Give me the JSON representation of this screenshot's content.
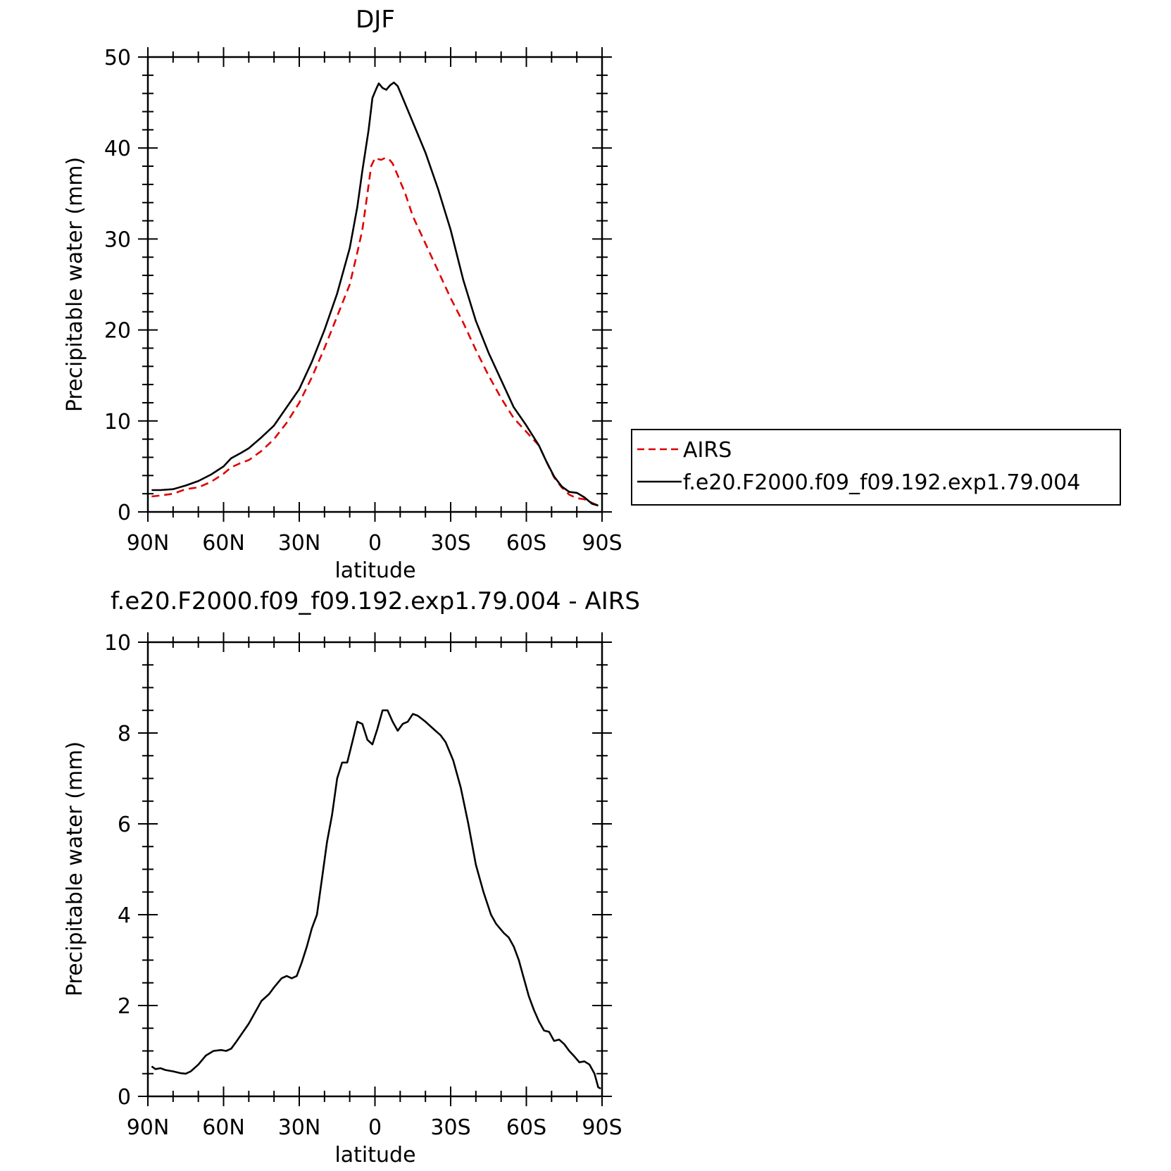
{
  "charts_meta": {
    "count": 2
  },
  "chart_data": [
    {
      "type": "line",
      "title": "DJF",
      "xlabel": "latitude",
      "ylabel": "Precipitable water (mm)",
      "xlim": [
        90,
        -90
      ],
      "ylim": [
        0,
        50
      ],
      "x_ticks": [
        90,
        60,
        30,
        0,
        -30,
        -60,
        -90
      ],
      "x_tick_labels": [
        "90N",
        "60N",
        "30N",
        "0",
        "30S",
        "60S",
        "90S"
      ],
      "y_ticks": [
        0,
        10,
        20,
        30,
        40,
        50
      ],
      "y_tick_labels": [
        "0",
        "10",
        "20",
        "30",
        "40",
        "50"
      ],
      "grid": false,
      "legend_position": "right",
      "series": [
        {
          "name": "AIRS",
          "color": "#e00000",
          "dash": "dashed",
          "points": [
            [
              88.5,
              1.7
            ],
            [
              85,
              1.8
            ],
            [
              80,
              2.0
            ],
            [
              75,
              2.5
            ],
            [
              70,
              2.7
            ],
            [
              65,
              3.3
            ],
            [
              60,
              4.2
            ],
            [
              57,
              4.9
            ],
            [
              53,
              5.4
            ],
            [
              50,
              5.7
            ],
            [
              45,
              6.7
            ],
            [
              40,
              8.0
            ],
            [
              35,
              9.8
            ],
            [
              30,
              12.0
            ],
            [
              25,
              14.8
            ],
            [
              20,
              18.0
            ],
            [
              15,
              21.5
            ],
            [
              10,
              25.0
            ],
            [
              7,
              28.5
            ],
            [
              5,
              31.0
            ],
            [
              3,
              35.0
            ],
            [
              1.5,
              38.0
            ],
            [
              0,
              38.9
            ],
            [
              -1,
              38.8
            ],
            [
              -2.5,
              38.7
            ],
            [
              -4,
              38.9
            ],
            [
              -5.5,
              38.8
            ],
            [
              -7,
              38.3
            ],
            [
              -9,
              37.0
            ],
            [
              -12,
              35.0
            ],
            [
              -15,
              32.5
            ],
            [
              -20,
              29.5
            ],
            [
              -25,
              26.5
            ],
            [
              -30,
              23.5
            ],
            [
              -35,
              20.8
            ],
            [
              -40,
              17.8
            ],
            [
              -45,
              15.0
            ],
            [
              -50,
              12.5
            ],
            [
              -55,
              10.3
            ],
            [
              -60,
              8.8
            ],
            [
              -65,
              7.3
            ],
            [
              -68,
              5.5
            ],
            [
              -71,
              3.8
            ],
            [
              -74,
              2.7
            ],
            [
              -77,
              1.9
            ],
            [
              -80,
              1.5
            ],
            [
              -83,
              1.4
            ],
            [
              -86,
              1.0
            ],
            [
              -88.5,
              0.7
            ]
          ]
        },
        {
          "name": "f.e20.F2000.f09_f09.192.exp1.79.004",
          "color": "#000000",
          "dash": "solid",
          "points": [
            [
              88.5,
              2.4
            ],
            [
              85,
              2.4
            ],
            [
              80,
              2.5
            ],
            [
              75,
              2.9
            ],
            [
              70,
              3.4
            ],
            [
              65,
              4.1
            ],
            [
              60,
              5.0
            ],
            [
              57,
              5.9
            ],
            [
              53,
              6.5
            ],
            [
              50,
              7.0
            ],
            [
              45,
              8.2
            ],
            [
              40,
              9.5
            ],
            [
              35,
              11.5
            ],
            [
              30,
              13.5
            ],
            [
              25,
              16.5
            ],
            [
              20,
              20.0
            ],
            [
              15,
              24.0
            ],
            [
              10,
              29.0
            ],
            [
              7,
              33.5
            ],
            [
              5,
              37.5
            ],
            [
              2.5,
              42.0
            ],
            [
              1,
              45.5
            ],
            [
              -0.5,
              46.5
            ],
            [
              -1.5,
              47.1
            ],
            [
              -3,
              46.6
            ],
            [
              -4.5,
              46.4
            ],
            [
              -6,
              46.9
            ],
            [
              -7.5,
              47.2
            ],
            [
              -9,
              46.8
            ],
            [
              -11,
              45.5
            ],
            [
              -14,
              43.5
            ],
            [
              -17,
              41.5
            ],
            [
              -20,
              39.5
            ],
            [
              -25,
              35.5
            ],
            [
              -30,
              31.0
            ],
            [
              -35,
              25.5
            ],
            [
              -40,
              21.0
            ],
            [
              -45,
              17.5
            ],
            [
              -50,
              14.5
            ],
            [
              -55,
              11.5
            ],
            [
              -60,
              9.5
            ],
            [
              -65,
              7.3
            ],
            [
              -68,
              5.5
            ],
            [
              -71,
              3.9
            ],
            [
              -74,
              2.8
            ],
            [
              -77,
              2.2
            ],
            [
              -80,
              2.1
            ],
            [
              -83,
              1.6
            ],
            [
              -86,
              0.9
            ],
            [
              -88.5,
              0.7
            ]
          ]
        }
      ]
    },
    {
      "type": "line",
      "title": "f.e20.F2000.f09_f09.192.exp1.79.004 - AIRS",
      "xlabel": "latitude",
      "ylabel": "Precipitable water (mm)",
      "xlim": [
        90,
        -90
      ],
      "ylim": [
        0,
        10
      ],
      "x_ticks": [
        90,
        60,
        30,
        0,
        -30,
        -60,
        -90
      ],
      "x_tick_labels": [
        "90N",
        "60N",
        "30N",
        "0",
        "30S",
        "60S",
        "90S"
      ],
      "y_ticks": [
        0,
        2,
        4,
        6,
        8,
        10
      ],
      "y_tick_labels": [
        "0",
        "2",
        "4",
        "6",
        "8",
        "10"
      ],
      "grid": false,
      "series": [
        {
          "color": "#000000",
          "dash": "solid",
          "points": [
            [
              88.5,
              0.66
            ],
            [
              87,
              0.6
            ],
            [
              85,
              0.62
            ],
            [
              83,
              0.58
            ],
            [
              80,
              0.55
            ],
            [
              77,
              0.51
            ],
            [
              75,
              0.5
            ],
            [
              73,
              0.55
            ],
            [
              70,
              0.7
            ],
            [
              67,
              0.9
            ],
            [
              64,
              1.0
            ],
            [
              61,
              1.02
            ],
            [
              59,
              1.0
            ],
            [
              57,
              1.05
            ],
            [
              55,
              1.2
            ],
            [
              50,
              1.6
            ],
            [
              45,
              2.1
            ],
            [
              42,
              2.25
            ],
            [
              40,
              2.4
            ],
            [
              37,
              2.6
            ],
            [
              35,
              2.65
            ],
            [
              33,
              2.6
            ],
            [
              31,
              2.65
            ],
            [
              29,
              2.95
            ],
            [
              27,
              3.3
            ],
            [
              25,
              3.7
            ],
            [
              23,
              4.0
            ],
            [
              21,
              4.8
            ],
            [
              19,
              5.6
            ],
            [
              17,
              6.2
            ],
            [
              15,
              7.0
            ],
            [
              13,
              7.35
            ],
            [
              11,
              7.35
            ],
            [
              9,
              7.8
            ],
            [
              7,
              8.25
            ],
            [
              5,
              8.2
            ],
            [
              3,
              7.85
            ],
            [
              1,
              7.75
            ],
            [
              -1,
              8.1
            ],
            [
              -3,
              8.5
            ],
            [
              -5,
              8.5
            ],
            [
              -7,
              8.25
            ],
            [
              -9,
              8.05
            ],
            [
              -11,
              8.2
            ],
            [
              -13,
              8.25
            ],
            [
              -15,
              8.42
            ],
            [
              -17,
              8.38
            ],
            [
              -20,
              8.25
            ],
            [
              -23,
              8.1
            ],
            [
              -26,
              7.95
            ],
            [
              -28,
              7.8
            ],
            [
              -31,
              7.4
            ],
            [
              -34,
              6.8
            ],
            [
              -37,
              6.0
            ],
            [
              -40,
              5.1
            ],
            [
              -43,
              4.5
            ],
            [
              -46,
              4.0
            ],
            [
              -48,
              3.8
            ],
            [
              -51,
              3.6
            ],
            [
              -53,
              3.5
            ],
            [
              -55,
              3.3
            ],
            [
              -57,
              3.0
            ],
            [
              -59,
              2.6
            ],
            [
              -61,
              2.2
            ],
            [
              -63,
              1.9
            ],
            [
              -65,
              1.65
            ],
            [
              -67,
              1.45
            ],
            [
              -69,
              1.42
            ],
            [
              -71,
              1.22
            ],
            [
              -73,
              1.25
            ],
            [
              -75,
              1.15
            ],
            [
              -77,
              1.0
            ],
            [
              -79,
              0.88
            ],
            [
              -81,
              0.75
            ],
            [
              -83,
              0.77
            ],
            [
              -85,
              0.7
            ],
            [
              -87,
              0.5
            ],
            [
              -88.5,
              0.2
            ],
            [
              -89.5,
              0.17
            ]
          ]
        }
      ]
    }
  ]
}
